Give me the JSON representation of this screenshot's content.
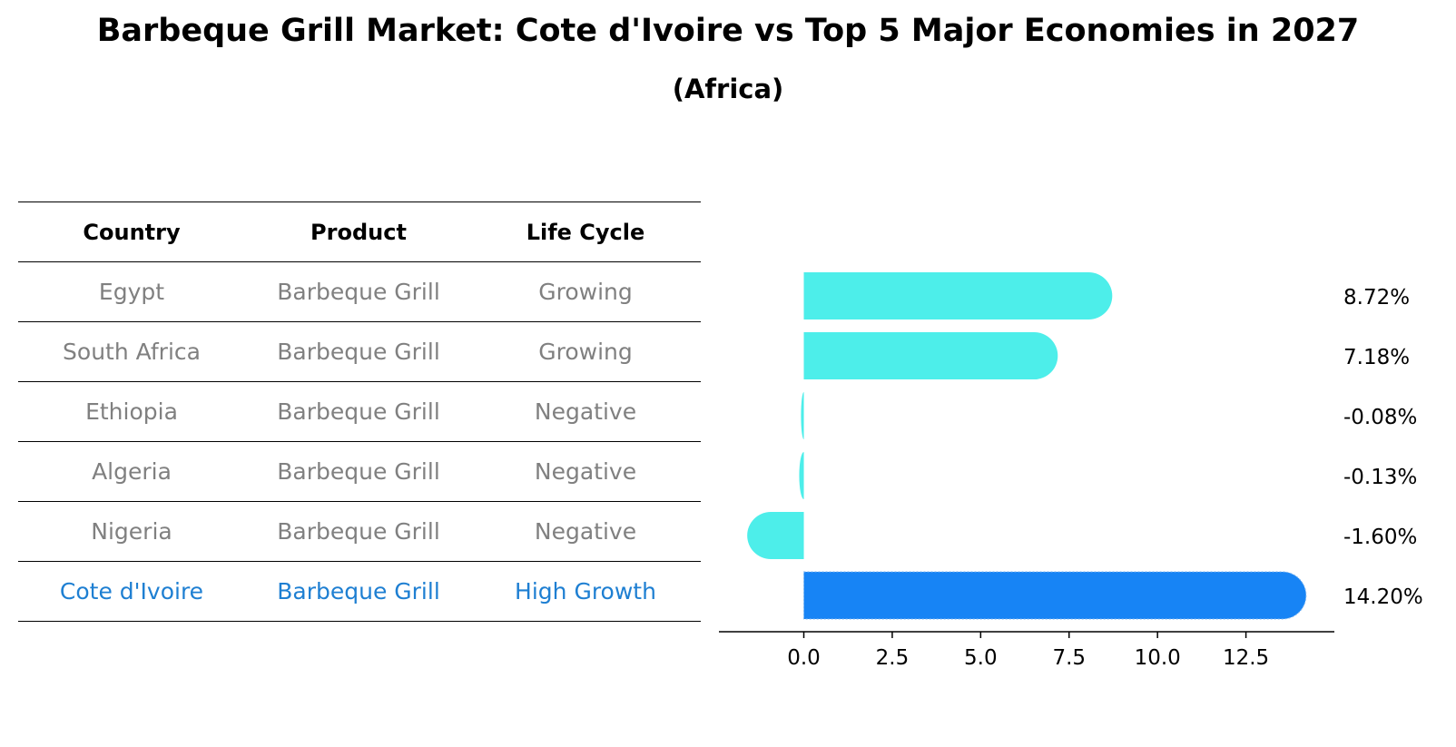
{
  "title": "Barbeque Grill Market: Cote d'Ivoire vs Top 5 Major Economies in 2027",
  "subtitle": "(Africa)",
  "table": {
    "headers": [
      "Country",
      "Product",
      "Life Cycle"
    ],
    "rows": [
      {
        "country": "Egypt",
        "product": "Barbeque Grill",
        "life_cycle": "Growing"
      },
      {
        "country": "South Africa",
        "product": "Barbeque Grill",
        "life_cycle": "Growing"
      },
      {
        "country": "Ethiopia",
        "product": "Barbeque Grill",
        "life_cycle": "Negative"
      },
      {
        "country": "Algeria",
        "product": "Barbeque Grill",
        "life_cycle": "Negative"
      },
      {
        "country": "Nigeria",
        "product": "Barbeque Grill",
        "life_cycle": "Negative"
      },
      {
        "country": "Cote d'Ivoire",
        "product": "Barbeque Grill",
        "life_cycle": "High Growth"
      }
    ]
  },
  "colors": {
    "bar": "#4deeea",
    "highlight_bar": "#1784f5",
    "highlight_text": "#1e7fd2",
    "muted_text": "#808080"
  },
  "chart_data": {
    "type": "bar",
    "orientation": "horizontal",
    "categories": [
      "Egypt",
      "South Africa",
      "Ethiopia",
      "Algeria",
      "Nigeria",
      "Cote d'Ivoire"
    ],
    "values": [
      8.72,
      7.18,
      -0.08,
      -0.13,
      -1.6,
      14.2
    ],
    "value_labels": [
      "8.72%",
      "7.18%",
      "-0.08%",
      "-0.13%",
      "-1.60%",
      "14.20%"
    ],
    "highlight": "Cote d'Ivoire",
    "xlim": [
      -2.4,
      15.0
    ],
    "xticks": [
      0.0,
      2.5,
      5.0,
      7.5,
      10.0,
      12.5
    ],
    "xtick_labels": [
      "0.0",
      "2.5",
      "5.0",
      "7.5",
      "10.0",
      "12.5"
    ],
    "xlabel": "",
    "ylabel": "",
    "grid": false
  }
}
